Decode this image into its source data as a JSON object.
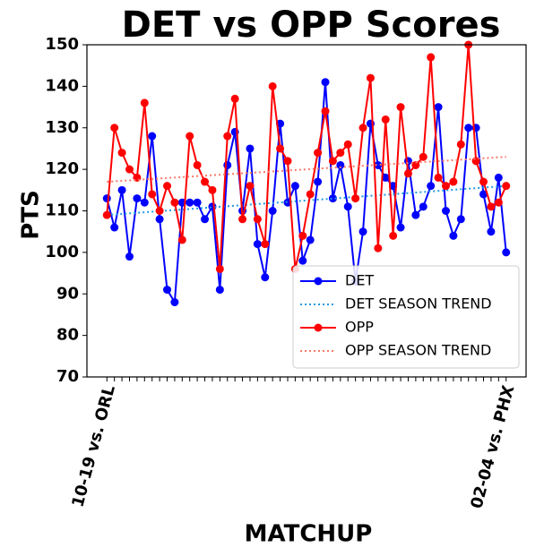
{
  "chart_data": {
    "type": "line",
    "title": "DET vs OPP Scores",
    "x_label": "MATCHUP",
    "y_label": "PTS",
    "categories": [
      "10-19 vs. ORL",
      null,
      null,
      null,
      null,
      null,
      null,
      null,
      null,
      null,
      null,
      null,
      null,
      null,
      null,
      null,
      null,
      null,
      null,
      null,
      null,
      null,
      null,
      null,
      null,
      null,
      null,
      null,
      null,
      null,
      null,
      null,
      null,
      null,
      null,
      null,
      null,
      null,
      null,
      null,
      null,
      null,
      null,
      null,
      null,
      null,
      null,
      null,
      null,
      null,
      null,
      null,
      null,
      "02-04 vs. PHX"
    ],
    "series": [
      {
        "name": "DET",
        "color": "#0000ff",
        "style": "solid-marker",
        "values": [
          113,
          106,
          115,
          99,
          113,
          112,
          128,
          108,
          91,
          88,
          112,
          112,
          112,
          108,
          111,
          91,
          121,
          129,
          110,
          125,
          102,
          94,
          110,
          131,
          112,
          116,
          98,
          103,
          117,
          141,
          113,
          121,
          111,
          93,
          105,
          131,
          121,
          118,
          116,
          106,
          122,
          109,
          111,
          116,
          135,
          110,
          104,
          108,
          130,
          130,
          114,
          105,
          118,
          100
        ]
      },
      {
        "name": "DET SEASON TREND",
        "color": "#1f9be0",
        "style": "dotted",
        "start": 109,
        "end": 116
      },
      {
        "name": "OPP",
        "color": "#ff0000",
        "style": "solid-marker",
        "values": [
          109,
          130,
          124,
          120,
          118,
          136,
          114,
          110,
          116,
          112,
          103,
          128,
          121,
          117,
          115,
          96,
          128,
          137,
          108,
          116,
          108,
          102,
          140,
          125,
          122,
          96,
          104,
          114,
          124,
          134,
          122,
          124,
          126,
          113,
          130,
          142,
          101,
          132,
          104,
          135,
          119,
          121,
          123,
          147,
          118,
          116,
          117,
          126,
          150,
          122,
          117,
          111,
          112,
          116
        ]
      },
      {
        "name": "OPP SEASON TREND",
        "color": "#fa7a6a",
        "style": "dotted",
        "start": 117,
        "end": 123
      }
    ],
    "ylim": [
      70,
      150
    ],
    "yticks": [
      70,
      80,
      90,
      100,
      110,
      120,
      130,
      140,
      150
    ],
    "legend": "lower right"
  }
}
